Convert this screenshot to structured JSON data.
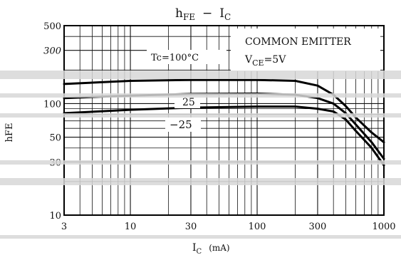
{
  "chart_data": {
    "type": "line",
    "title_main": "h",
    "title_main_sub": "FE",
    "title_dash": "−",
    "title_ic": "I",
    "title_ic_sub": "C",
    "xlabel_main": "I",
    "xlabel_sub": "C",
    "xlabel_unit": "(mA)",
    "ylabel": "hFE",
    "x_scale": "log",
    "y_scale": "log",
    "xlim": [
      3,
      1000
    ],
    "ylim": [
      10,
      500
    ],
    "grid": true,
    "x_ticks": [
      3,
      10,
      30,
      100,
      300,
      1000
    ],
    "x_tick_labels": [
      "3",
      "10",
      "30",
      "100",
      "300",
      "1000"
    ],
    "y_ticks": [
      10,
      30,
      50,
      100,
      300,
      500
    ],
    "y_tick_labels": [
      "10",
      "30",
      "50",
      "100",
      "300",
      "500"
    ],
    "annotations": {
      "condition_1": "COMMON EMITTER",
      "condition_2_main": "V",
      "condition_2_sub": "CE",
      "condition_2_value": "=5V"
    },
    "series": [
      {
        "name": "Tc=100°C",
        "x": [
          3,
          10,
          30,
          100,
          200,
          300,
          400,
          500,
          600,
          800,
          1000
        ],
        "y": [
          150,
          160,
          163,
          163,
          160,
          145,
          120,
          95,
          75,
          55,
          45
        ]
      },
      {
        "name": "25",
        "x": [
          3,
          10,
          30,
          100,
          200,
          300,
          400,
          500,
          600,
          800,
          1000
        ],
        "y": [
          112,
          118,
          122,
          123,
          120,
          112,
          100,
          82,
          65,
          45,
          32
        ]
      },
      {
        "name": "−25",
        "x": [
          3,
          10,
          30,
          100,
          200,
          300,
          400,
          500,
          600,
          800,
          1000
        ],
        "y": [
          82,
          88,
          92,
          94,
          94,
          90,
          85,
          72,
          57,
          40,
          28
        ]
      }
    ]
  }
}
